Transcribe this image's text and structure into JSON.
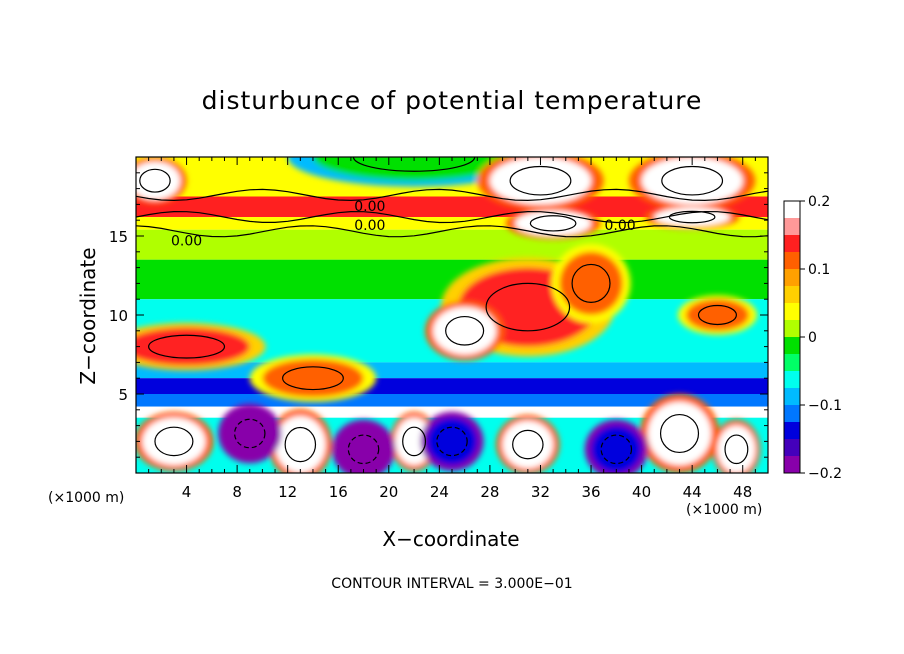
{
  "title": "disturbunce of potential temperature",
  "xlabel": "X−coordinate",
  "ylabel": "Z−coordinate",
  "x_unit_left": "(×1000 m)",
  "x_unit_right": "(×1000 m)",
  "footer": "CONTOUR INTERVAL = 3.000E−01",
  "contour_labels": [
    "0.00",
    "0.00",
    "0.00",
    "0.00"
  ],
  "colorbar": {
    "ticks": [
      0.2,
      0.1,
      0,
      -0.1,
      -0.2
    ],
    "tick_labels": [
      "0.2",
      "0.1",
      "0",
      "−0.1",
      "−0.2"
    ],
    "colors": [
      "#ffffff",
      "#ff9999",
      "#ff2020",
      "#ff6000",
      "#ffa000",
      "#ffd000",
      "#ffff00",
      "#b0ff00",
      "#00e000",
      "#00ff66",
      "#00ffee",
      "#00bbff",
      "#0077ff",
      "#0000dd",
      "#4400bb",
      "#8800aa"
    ]
  },
  "chart_data": {
    "type": "heatmap",
    "title": "disturbunce of potential temperature",
    "xlabel": "X−coordinate",
    "ylabel": "Z−coordinate",
    "x_unit": "×1000 m",
    "xlim": [
      0,
      50
    ],
    "ylim": [
      0,
      20
    ],
    "x_ticks": [
      4,
      8,
      12,
      16,
      20,
      24,
      28,
      32,
      36,
      40,
      44,
      48
    ],
    "y_ticks": [
      5,
      10,
      15
    ],
    "color_range": [
      -0.2,
      0.2
    ],
    "contour_interval": 0.3,
    "bands": [
      {
        "z_range": [
          17.5,
          20
        ],
        "value": 0.05
      },
      {
        "z_range": [
          16.2,
          17.5
        ],
        "value": 0.15
      },
      {
        "z_range": [
          15.4,
          16.2
        ],
        "value": 0.05
      },
      {
        "z_range": [
          13.5,
          15.4
        ],
        "value": 0.02
      },
      {
        "z_range": [
          11,
          13.5
        ],
        "value": -0.02
      },
      {
        "z_range": [
          7,
          11
        ],
        "value": -0.06
      },
      {
        "z_range": [
          6,
          7
        ],
        "value": -0.09
      },
      {
        "z_range": [
          5,
          6
        ],
        "value": -0.15
      },
      {
        "z_range": [
          4.2,
          5
        ],
        "value": -0.1
      },
      {
        "z_range": [
          3.5,
          4.2
        ],
        "value": 0.2
      },
      {
        "z_range": [
          0,
          3.5
        ],
        "value": -0.05
      }
    ],
    "features": [
      {
        "x": 22,
        "z": 20,
        "rx": 8,
        "rz": 1.5,
        "value": 0.0
      },
      {
        "x": 32,
        "z": 18.5,
        "rx": 4,
        "rz": 1.5,
        "value": 0.2
      },
      {
        "x": 44,
        "z": 18.5,
        "rx": 4,
        "rz": 1.5,
        "value": 0.2
      },
      {
        "x": 33,
        "z": 15.8,
        "rx": 3,
        "rz": 0.8,
        "value": 0.2
      },
      {
        "x": 44,
        "z": 16.2,
        "rx": 3,
        "rz": 0.6,
        "value": 0.2
      },
      {
        "x": 1.5,
        "z": 18.5,
        "rx": 2,
        "rz": 1.2,
        "value": 0.2
      },
      {
        "x": 31,
        "z": 10.5,
        "rx": 5.5,
        "rz": 2.5,
        "value": 0.15
      },
      {
        "x": 36,
        "z": 12,
        "rx": 2.5,
        "rz": 2,
        "value": 0.12
      },
      {
        "x": 26,
        "z": 9,
        "rx": 2.5,
        "rz": 1.5,
        "value": 0.2
      },
      {
        "x": 4,
        "z": 8,
        "rx": 5,
        "rz": 1.2,
        "value": 0.15
      },
      {
        "x": 14,
        "z": 6,
        "rx": 4,
        "rz": 1.2,
        "value": 0.12
      },
      {
        "x": 46,
        "z": 10,
        "rx": 2.5,
        "rz": 1,
        "value": 0.12
      },
      {
        "x": 3,
        "z": 2,
        "rx": 2.5,
        "rz": 1.5,
        "value": 0.2
      },
      {
        "x": 13,
        "z": 1.8,
        "rx": 2,
        "rz": 1.8,
        "value": 0.2
      },
      {
        "x": 31,
        "z": 1.8,
        "rx": 2,
        "rz": 1.5,
        "value": 0.2
      },
      {
        "x": 43,
        "z": 2.5,
        "rx": 2.5,
        "rz": 2,
        "value": 0.2
      },
      {
        "x": 47.5,
        "z": 1.5,
        "rx": 1.5,
        "rz": 1.5,
        "value": 0.2
      },
      {
        "x": 22,
        "z": 2,
        "rx": 1.5,
        "rz": 1.5,
        "value": 0.2
      },
      {
        "x": 9,
        "z": 2.5,
        "rx": 2,
        "rz": 1.5,
        "value": -0.2
      },
      {
        "x": 18,
        "z": 1.5,
        "rx": 2,
        "rz": 1.5,
        "value": -0.2
      },
      {
        "x": 25,
        "z": 2,
        "rx": 2,
        "rz": 1.5,
        "value": -0.15
      },
      {
        "x": 38,
        "z": 1.5,
        "rx": 2,
        "rz": 1.5,
        "value": -0.15
      }
    ]
  }
}
